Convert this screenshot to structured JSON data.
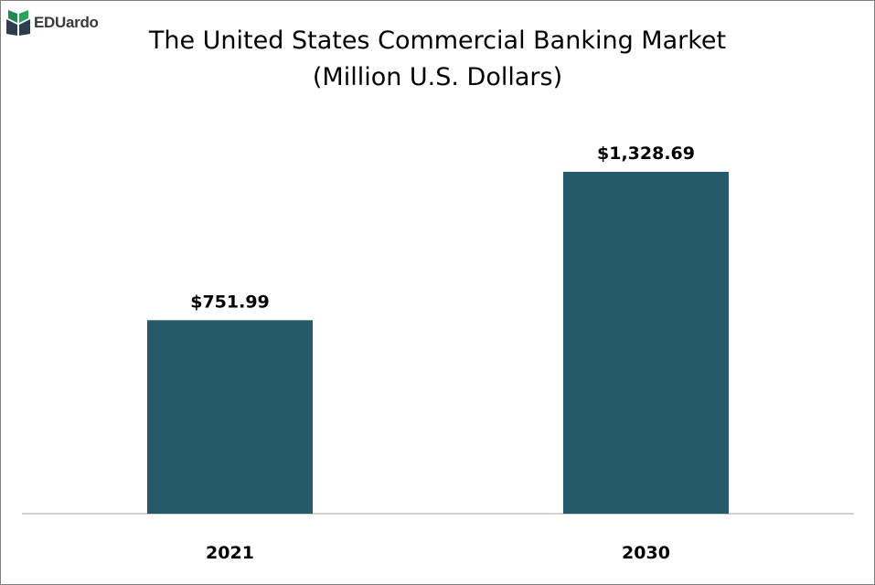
{
  "logo": {
    "text": "EDUardo",
    "icon": "book-logo-icon",
    "colors": [
      "#1f8a4c",
      "#2c3e50"
    ]
  },
  "chart_data": {
    "type": "bar",
    "title": "The United States Commercial Banking Market",
    "subtitle": "(Million U.S. Dollars)",
    "categories": [
      "2021",
      "2030"
    ],
    "values": [
      751.99,
      1328.69
    ],
    "data_labels": [
      "$751.99",
      "$1,328.69"
    ],
    "xlabel": "",
    "ylabel": "",
    "ylim": [
      0,
      1500
    ],
    "grid": false,
    "legend": "none",
    "bar_color": "#245a69",
    "axis_color": "#a6a6a6"
  }
}
